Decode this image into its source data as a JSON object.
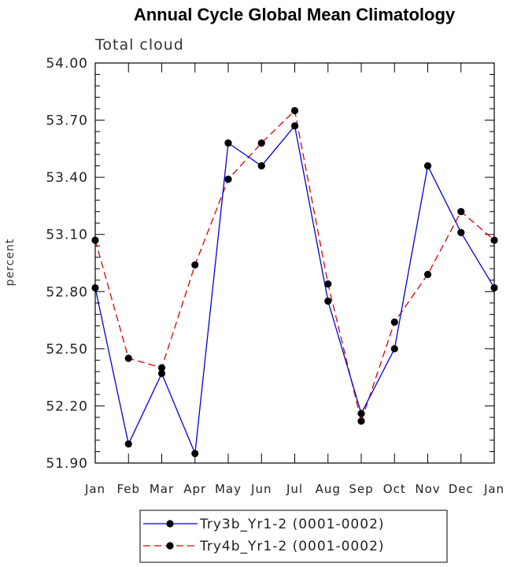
{
  "chart_data": {
    "type": "line",
    "title": "Annual Cycle Global Mean Climatology",
    "subtitle": "Total cloud",
    "ylabel": "percent",
    "xlabel": "",
    "ylim": [
      51.9,
      54.0
    ],
    "yticks": [
      "51.90",
      "52.20",
      "52.50",
      "52.80",
      "53.10",
      "53.40",
      "53.70",
      "54.00"
    ],
    "categories": [
      "Jan",
      "Feb",
      "Mar",
      "Apr",
      "May",
      "Jun",
      "Jul",
      "Aug",
      "Sep",
      "Oct",
      "Nov",
      "Dec",
      "Jan"
    ],
    "legend_position": "bottom",
    "grid": false,
    "series": [
      {
        "name": "Try3b_Yr1-2 (0001-0002)",
        "color": "#0000dd",
        "dash": "solid",
        "values": [
          52.82,
          52.0,
          52.37,
          51.95,
          53.58,
          53.46,
          53.67,
          52.75,
          52.16,
          52.5,
          53.46,
          53.11,
          52.82
        ]
      },
      {
        "name": "Try4b_Yr1-2 (0001-0002)",
        "color": "#dd0000",
        "dash": "dashed",
        "values": [
          53.07,
          52.45,
          52.4,
          52.94,
          53.39,
          53.58,
          53.75,
          52.84,
          52.12,
          52.64,
          52.89,
          53.22,
          53.07
        ]
      }
    ]
  }
}
